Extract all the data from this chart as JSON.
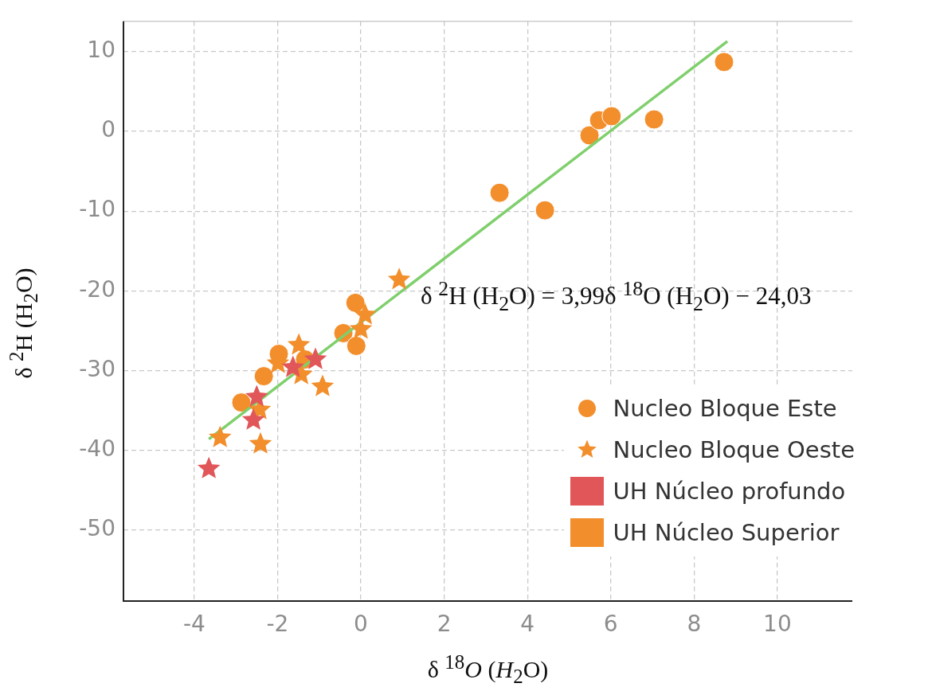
{
  "chart_data": {
    "type": "scatter",
    "xlabel": "δ $^{18}$O (H$_{2}$O)",
    "ylabel": "δ $^{2}$H (H$_{2}$O)",
    "annotations": [
      "δ $^{2}$H (H$_{2}$O) = 3,99δ $^{18}$O (H$_{2}$O) − 24,03"
    ],
    "xlim": [
      -5.7,
      11.8
    ],
    "ylim": [
      -58.9,
      13.8
    ],
    "xticks": [
      -4,
      -2,
      0,
      2,
      4,
      6,
      8,
      10
    ],
    "yticks": [
      -50,
      -40,
      -30,
      -20,
      -10,
      0,
      10
    ],
    "grid": true,
    "legend": "bottom right",
    "series": [
      {
        "name": "Nucleo Bloque Este",
        "marker": "circle",
        "color": "#f28e2b",
        "x": [
          -0.13,
          -0.42,
          -0.11,
          -1.97,
          -1.34,
          -2.33,
          -2.87,
          3.33,
          4.42,
          5.49,
          5.72,
          6.02,
          7.04,
          8.72
        ],
        "values": [
          -21.5,
          -25.3,
          -26.9,
          -27.9,
          -28.6,
          -30.7,
          -34.0,
          -7.7,
          -9.9,
          -0.5,
          1.4,
          1.9,
          1.5,
          8.7
        ]
      },
      {
        "name": "Nucleo Bloque Oeste",
        "marker": "star",
        "colors": [
          "#f28e2b",
          "#f28e2b",
          "#f28e2b",
          "#f28e2b",
          "#f28e2b",
          "#f28e2b",
          "#f28e2b",
          "#f28e2b",
          "#f28e2b",
          "#f28e2b",
          "#e15759",
          "#e15759",
          "#e15759",
          "#e15759",
          "#e15759"
        ],
        "x": [
          0.92,
          0.1,
          0.0,
          -1.49,
          -1.43,
          -1.99,
          -0.92,
          -2.43,
          -3.38,
          -2.41,
          -1.09,
          -1.63,
          -2.5,
          -2.58,
          -3.65
        ],
        "values": [
          -18.6,
          -23.0,
          -24.8,
          -26.8,
          -30.5,
          -29.1,
          -32.0,
          -34.9,
          -38.4,
          -39.2,
          -28.6,
          -29.6,
          -33.3,
          -36.2,
          -42.3
        ]
      },
      {
        "name": "UH Núcleo profundo",
        "color": "#e15759"
      },
      {
        "name": "UH Núcleo Superior",
        "color": "#f28e2b"
      },
      {
        "type": "line",
        "color": "#7fcf6c",
        "x": [
          -3.65,
          8.8
        ],
        "values": [
          -38.6,
          11.3
        ]
      }
    ]
  }
}
